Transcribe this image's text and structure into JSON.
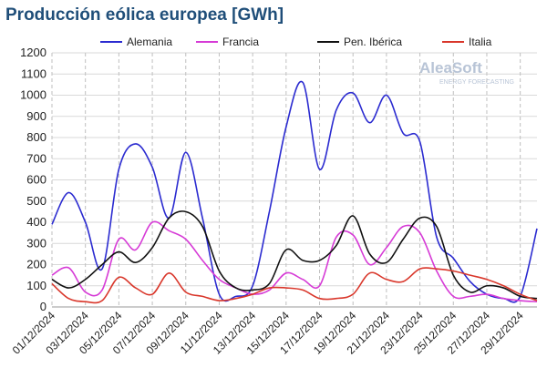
{
  "chart_data": {
    "type": "line",
    "title": "Producción eólica europea [GWh]",
    "annotations": [
      "AleaSoft",
      "ENERGY FORECASTING"
    ],
    "categories": [
      "01/12/2024",
      null,
      "03/12/2024",
      null,
      "05/12/2024",
      null,
      "07/12/2024",
      null,
      "09/12/2024",
      null,
      "11/12/2024",
      null,
      "13/12/2024",
      null,
      "15/12/2024",
      null,
      "17/12/2024",
      null,
      "19/12/2024",
      null,
      "21/12/2024",
      null,
      "23/12/2024",
      null,
      "25/12/2024",
      null,
      "27/12/2024",
      null,
      "29/12/2024",
      null
    ],
    "series": [
      {
        "name": "Alemania",
        "color": "#2b2bd0",
        "values": [
          390,
          540,
          400,
          180,
          650,
          770,
          660,
          420,
          730,
          420,
          60,
          50,
          100,
          450,
          850,
          1060,
          650,
          930,
          1010,
          870,
          1000,
          820,
          780,
          330,
          230,
          120,
          60,
          40,
          50,
          370
        ]
      },
      {
        "name": "Francia",
        "color": "#d63bd6",
        "values": [
          150,
          185,
          70,
          80,
          320,
          270,
          400,
          360,
          320,
          220,
          130,
          90,
          60,
          80,
          160,
          130,
          100,
          330,
          340,
          200,
          280,
          380,
          350,
          170,
          50,
          50,
          60,
          40,
          30,
          25
        ]
      },
      {
        "name": "Pen. Ibérica",
        "color": "#111111",
        "values": [
          130,
          90,
          130,
          200,
          260,
          210,
          280,
          420,
          450,
          380,
          170,
          90,
          80,
          110,
          270,
          220,
          220,
          290,
          430,
          250,
          210,
          320,
          420,
          380,
          150,
          70,
          100,
          90,
          50,
          40
        ]
      },
      {
        "name": "Italia",
        "color": "#d9372b",
        "values": [
          110,
          40,
          25,
          30,
          140,
          90,
          60,
          160,
          70,
          50,
          30,
          40,
          60,
          90,
          90,
          80,
          40,
          40,
          60,
          160,
          130,
          120,
          180,
          180,
          170,
          150,
          130,
          100,
          60,
          30
        ]
      }
    ],
    "ylim": [
      0,
      1200
    ],
    "yticks": [
      0,
      100,
      200,
      300,
      400,
      500,
      600,
      700,
      800,
      900,
      1000,
      1100,
      1200
    ],
    "grid": true,
    "legend": "top"
  }
}
